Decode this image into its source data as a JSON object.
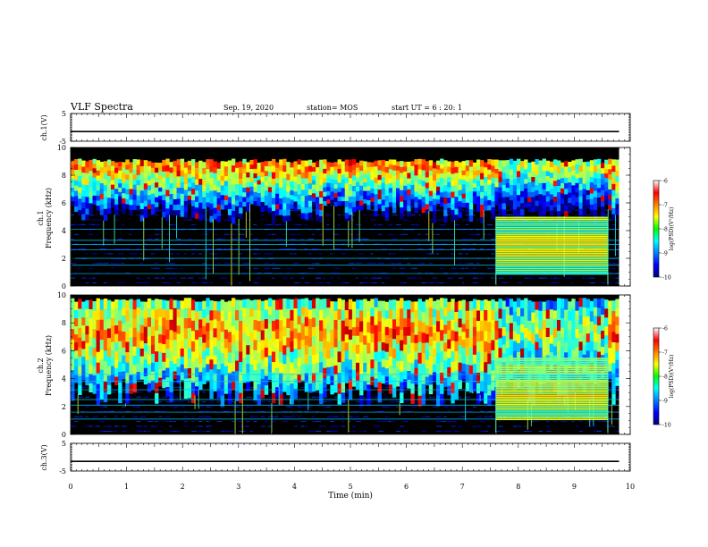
{
  "header": {
    "title": "VLF Spectra",
    "date": "Sep. 19, 2020",
    "station": "station= MOS",
    "start_ut": "start UT =  6 : 20: 1"
  },
  "chart_data": {
    "type": "heatmap",
    "x_axis": {
      "label": "Time (min)",
      "range": [
        0,
        10
      ],
      "ticks": [
        "0",
        "1",
        "2",
        "3",
        "4",
        "5",
        "6",
        "7",
        "8",
        "9",
        "10"
      ]
    },
    "panels": [
      {
        "id": "ch1-voltage",
        "type": "line",
        "ylabel": "ch.1(V)",
        "ylim": [
          -5,
          5
        ],
        "ticks": [
          "5",
          "-5"
        ],
        "level": -1.5,
        "x_end": 9.8
      },
      {
        "id": "ch1-spectrum",
        "type": "heatmap",
        "ylabel_line1": "ch.1",
        "ylabel_line2": "Frequency (kHz)",
        "ylim": [
          0,
          10
        ],
        "ticks": [
          "0",
          "2",
          "4",
          "6",
          "8",
          "10"
        ],
        "colorbar": {
          "label": "log(PSD)(V²/Hz)",
          "range": [
            -10,
            -6
          ],
          "ticks": [
            "-6",
            "-7",
            "-8",
            "-9",
            "-10"
          ]
        },
        "events": [
          {
            "t_start": 7.6,
            "t_end": 9.6,
            "f_low": 0.8,
            "f_high": 5.0
          }
        ],
        "emission_band_khz": [
          6.0,
          9.2
        ],
        "emission_peak_khz": 8.4,
        "data_end_min": 9.8
      },
      {
        "id": "ch2-spectrum",
        "type": "heatmap",
        "ylabel_line1": "ch.2",
        "ylabel_line2": "Frequency (kHz)",
        "ylim": [
          0,
          10
        ],
        "ticks": [
          "0",
          "2",
          "4",
          "6",
          "8",
          "10"
        ],
        "colorbar": {
          "label": "log(PSD)(V²/Hz)",
          "range": [
            -10,
            -6
          ],
          "ticks": [
            "-6",
            "-7",
            "-8",
            "-9",
            "-10"
          ]
        },
        "events": [
          {
            "t_start": 7.6,
            "t_end": 9.6,
            "f_low": 1.0,
            "f_high": 5.5
          }
        ],
        "emission_band_khz": [
          4.0,
          9.8
        ],
        "emission_peak_khz": 7.0,
        "data_end_min": 9.8
      },
      {
        "id": "ch3-voltage",
        "type": "line",
        "ylabel": "ch.3(V)",
        "ylim": [
          -5,
          5
        ],
        "ticks": [
          "5",
          "-5"
        ],
        "level": -1.5,
        "x_end": 9.8
      }
    ]
  }
}
